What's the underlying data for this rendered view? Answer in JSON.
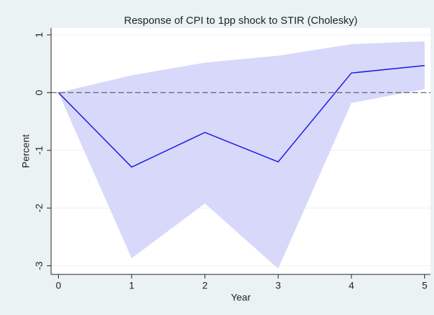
{
  "chart_data": {
    "type": "line",
    "title": "Response of CPI to 1pp shock to STIR (Cholesky)",
    "x_label": "Year",
    "y_label": "Percent",
    "x": [
      0,
      1,
      2,
      3,
      4,
      5
    ],
    "series": [
      {
        "color": "#1a1ae6",
        "values": [
          0,
          -1.29,
          -0.69,
          -1.2,
          0.34,
          0.47
        ]
      }
    ],
    "band": {
      "color": "#d8d8fa",
      "lower": [
        0,
        -2.87,
        -1.92,
        -3.05,
        -0.18,
        0.06
      ],
      "upper": [
        0,
        0.3,
        0.52,
        0.64,
        0.84,
        0.89
      ]
    },
    "reference_line": 0,
    "xlim": [
      -0.1,
      5.08
    ],
    "ylim": [
      -3.15,
      1.12
    ],
    "xticks": [
      0,
      1,
      2,
      3,
      4,
      5
    ],
    "yticks": [
      -3,
      -2,
      -1,
      0,
      1
    ],
    "grid": true
  }
}
